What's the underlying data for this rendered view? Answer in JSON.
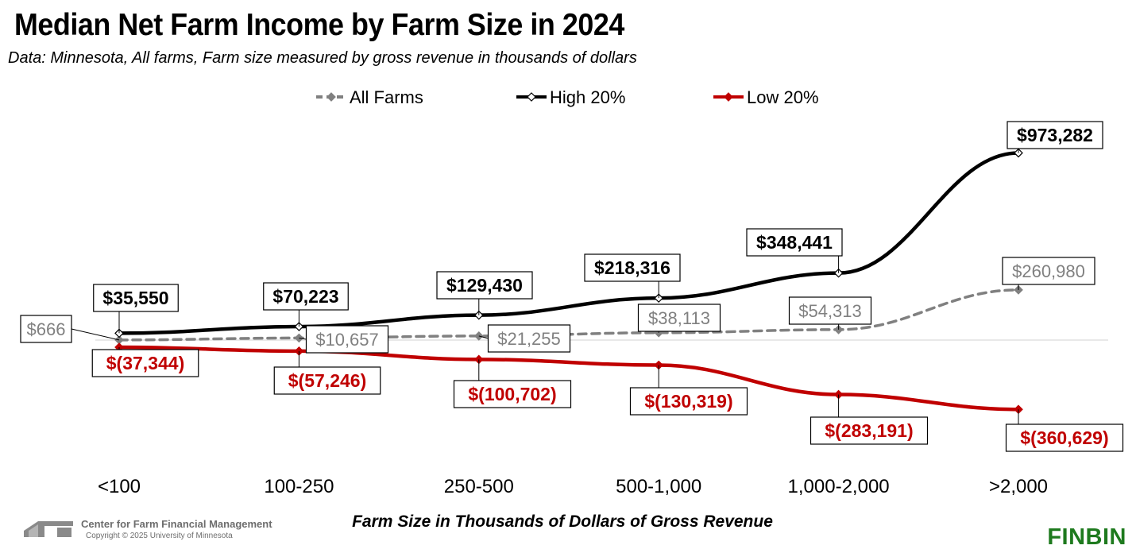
{
  "title": "Median Net Farm Income by Farm Size in 2024",
  "subtitle": "Data: Minnesota, All farms, Farm size measured by gross revenue in thousands of dollars",
  "chart_data": {
    "type": "line",
    "title": "Median Net Farm Income by Farm Size in 2024",
    "xlabel": "Farm Size in Thousands of Dollars of Gross Revenue",
    "ylabel": "",
    "categories": [
      "<100",
      "100-250",
      "250-500",
      "500-1,000",
      "1,000-2,000",
      ">2,000"
    ],
    "ylim": [
      -430000,
      1100000
    ],
    "grid": false,
    "legend_position": "top-center",
    "series": [
      {
        "name": "All Farms",
        "color": "#808080",
        "line_style": "dashed",
        "values": [
          666,
          10657,
          21255,
          38113,
          54313,
          260980
        ],
        "labels": [
          "$666",
          "$10,657",
          "$21,255",
          "$38,113",
          "$54,313",
          "$260,980"
        ]
      },
      {
        "name": "High 20%",
        "color": "#000000",
        "line_style": "solid",
        "values": [
          35550,
          70223,
          129430,
          218316,
          348441,
          973282
        ],
        "labels": [
          "$35,550",
          "$70,223",
          "$129,430",
          "$218,316",
          "$348,441",
          "$973,282"
        ]
      },
      {
        "name": "Low 20%",
        "color": "#c00000",
        "line_style": "solid",
        "values": [
          -37344,
          -57246,
          -100702,
          -130319,
          -283191,
          -360629
        ],
        "labels": [
          "$(37,344)",
          "$(57,246)",
          "$(100,702)",
          "$(130,319)",
          "$(283,191)",
          "$(360,629)"
        ]
      }
    ]
  },
  "footer": {
    "org": "Center for Farm Financial Management",
    "copyright": "Copyright © 2025 University of Minnesota",
    "brand": "FINBIN",
    "brand_color": "#1e7a1e"
  }
}
